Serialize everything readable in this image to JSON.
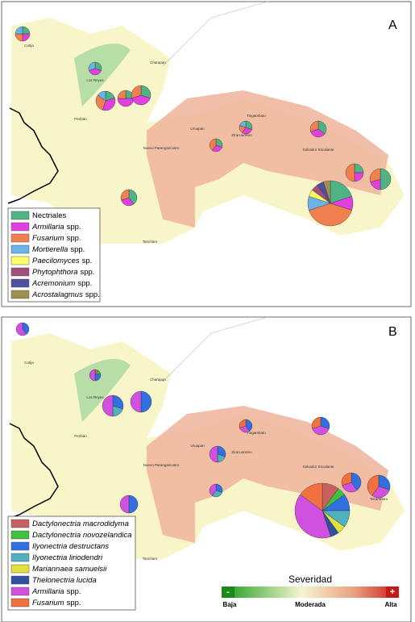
{
  "panels": [
    {
      "label": "A",
      "legend": [
        {
          "name": "Nectriales",
          "suffix": "",
          "color": "#4fb384"
        },
        {
          "name": "Armillaria",
          "suffix": "spp.",
          "color": "#e040e0"
        },
        {
          "name": "Fusarium",
          "suffix": "spp.",
          "color": "#f08050"
        },
        {
          "name": "Mortierella",
          "suffix": "spp.",
          "color": "#69b3e7"
        },
        {
          "name": "Paecilomyces",
          "suffix": "sp.",
          "color": "#ffff66"
        },
        {
          "name": "Phytophthora",
          "suffix": "spp.",
          "color": "#a0507a"
        },
        {
          "name": "Acremonium",
          "suffix": "spp.",
          "color": "#5050a0"
        },
        {
          "name": "Acrostalagmus",
          "suffix": "spp.",
          "color": "#a09050"
        }
      ],
      "pies": [
        {
          "values": [
            25,
            25,
            25,
            25,
            0,
            0,
            0,
            0
          ]
        },
        {
          "values": [
            30,
            40,
            0,
            30,
            0,
            0,
            0,
            0
          ]
        },
        {
          "values": [
            20,
            35,
            30,
            15,
            0,
            0,
            0,
            0
          ]
        },
        {
          "values": [
            25,
            50,
            25,
            0,
            0,
            0,
            0,
            0
          ]
        },
        {
          "values": [
            30,
            40,
            30,
            0,
            0,
            0,
            0,
            0
          ]
        },
        {
          "values": [
            30,
            30,
            20,
            20,
            0,
            0,
            0,
            0
          ]
        },
        {
          "values": [
            35,
            35,
            30,
            0,
            0,
            0,
            0,
            0
          ]
        },
        {
          "values": [
            20,
            10,
            40,
            10,
            5,
            5,
            5,
            5
          ]
        },
        {
          "values": [
            50,
            20,
            30,
            0,
            0,
            0,
            0,
            0
          ]
        },
        {
          "values": [
            40,
            30,
            30,
            0,
            0,
            0,
            0,
            0
          ]
        },
        {
          "values": [
            30,
            30,
            40,
            0,
            0,
            0,
            0,
            0
          ]
        },
        {
          "values": [
            25,
            25,
            50,
            0,
            0,
            0,
            0,
            0
          ]
        }
      ]
    },
    {
      "label": "B",
      "legend": [
        {
          "name": "Dactylonectria macrodidyma",
          "suffix": "",
          "color": "#c86060"
        },
        {
          "name": "Dactylonectria novozelandica",
          "suffix": "",
          "color": "#40c040"
        },
        {
          "name": "Ilyonectria destructans",
          "suffix": "",
          "color": "#3070e0"
        },
        {
          "name": "Ilyonectria liriodendri",
          "suffix": "",
          "color": "#50b0c0"
        },
        {
          "name": "Mariannaea samuelsii",
          "suffix": "",
          "color": "#e0e040"
        },
        {
          "name": "Thelonectria lucida",
          "suffix": "",
          "color": "#3050a0"
        },
        {
          "name": "Armillaria",
          "suffix": "spp.",
          "color": "#d050e0"
        },
        {
          "name": "Fusarium",
          "suffix": "spp.",
          "color": "#f07040"
        }
      ],
      "pies": [
        {
          "values": [
            0,
            0,
            40,
            0,
            0,
            0,
            60,
            0
          ]
        },
        {
          "values": [
            10,
            10,
            30,
            0,
            0,
            0,
            50,
            0
          ]
        },
        {
          "values": [
            0,
            0,
            30,
            20,
            0,
            0,
            50,
            0
          ]
        },
        {
          "values": [
            0,
            0,
            50,
            0,
            0,
            0,
            50,
            0
          ]
        },
        {
          "values": [
            0,
            0,
            30,
            0,
            0,
            0,
            40,
            30
          ]
        },
        {
          "values": [
            0,
            0,
            40,
            0,
            0,
            0,
            30,
            30
          ]
        },
        {
          "values": [
            0,
            0,
            30,
            20,
            0,
            0,
            50,
            0
          ]
        },
        {
          "values": [
            10,
            5,
            10,
            10,
            5,
            5,
            40,
            15
          ]
        },
        {
          "values": [
            0,
            0,
            30,
            0,
            0,
            0,
            30,
            40
          ]
        },
        {
          "values": [
            0,
            0,
            50,
            0,
            0,
            0,
            50,
            0
          ]
        },
        {
          "values": [
            0,
            0,
            30,
            30,
            0,
            0,
            40,
            0
          ]
        },
        {
          "values": [
            0,
            0,
            40,
            0,
            0,
            0,
            30,
            30
          ]
        }
      ]
    }
  ],
  "places": [
    "Cotija",
    "Los Reyes",
    "Charapan",
    "Peribán",
    "Uruapan",
    "Tingambato",
    "Nuevo Parangaricutiro",
    "Ziracuaretiro",
    "Salvador Escalante",
    "Tacámbaro",
    "Tancítaro"
  ],
  "severity": {
    "title": "Severidad",
    "minus": "-",
    "plus": "+",
    "low": "Baja",
    "mid": "Moderada",
    "high": "Alta"
  }
}
